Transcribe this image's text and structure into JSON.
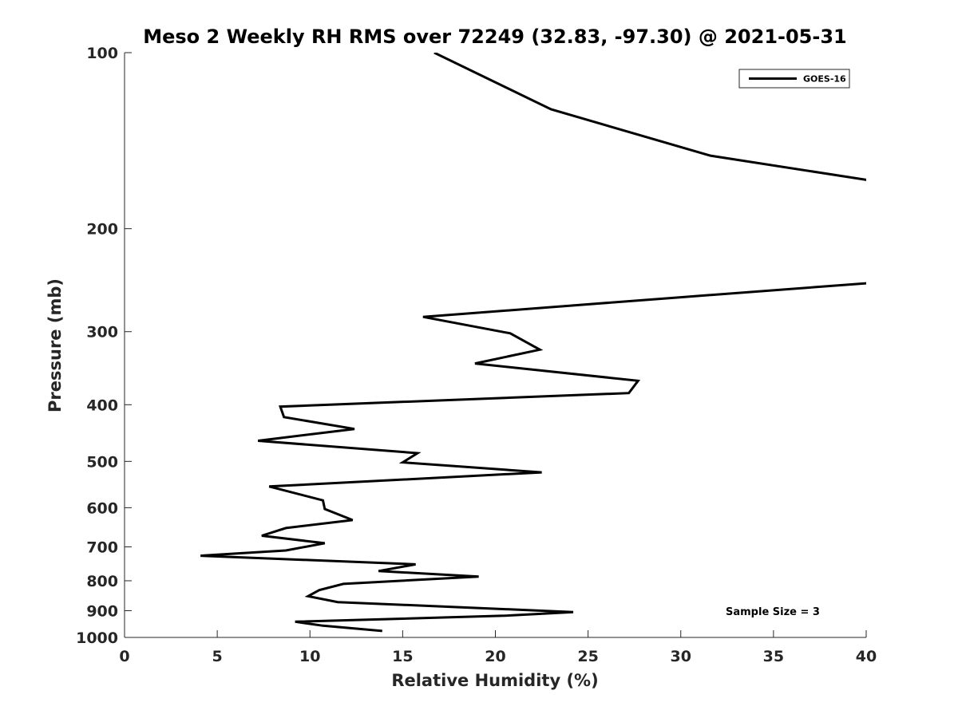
{
  "chart_data": {
    "type": "line",
    "title": "Meso 2 Weekly RH RMS over 72249 (32.83, -97.30) @ 2021-05-31",
    "xlabel": "Relative Humidity (%)",
    "ylabel": "Pressure (mb)",
    "xlim": [
      0,
      40
    ],
    "ylim": [
      100,
      1000
    ],
    "y_scale": "log",
    "y_reversed": true,
    "xticks": [
      0,
      5,
      10,
      15,
      20,
      25,
      30,
      35,
      40
    ],
    "yticks": [
      100,
      200,
      300,
      400,
      500,
      600,
      700,
      800,
      900,
      1000
    ],
    "grid": false,
    "legend_position": "top-right",
    "annotation": "Sample Size = 3",
    "series": [
      {
        "name": "GOES-16",
        "color": "#000000",
        "x": [
          16.7,
          23.0,
          31.6,
          40.0,
          44.0,
          43.5,
          40.0,
          30.0,
          16.1,
          20.8,
          22.4,
          18.9,
          27.7,
          27.2,
          8.4,
          8.6,
          12.4,
          7.2,
          15.8,
          15.0,
          22.5,
          7.8,
          10.7,
          10.8,
          12.3,
          8.7,
          7.4,
          10.8,
          8.7,
          4.1,
          15.7,
          13.7,
          19.1,
          11.8,
          10.5,
          9.9,
          11.5,
          24.2,
          20.5,
          9.2,
          10.7,
          13.9
        ],
        "y": [
          100,
          125,
          150,
          165,
          190,
          230,
          248,
          262,
          283,
          302,
          322,
          340,
          364,
          382,
          403,
          420,
          440,
          461,
          484,
          502,
          522,
          552,
          583,
          603,
          630,
          650,
          670,
          690,
          710,
          725,
          750,
          770,
          787,
          810,
          830,
          850,
          870,
          905,
          918,
          940,
          955,
          975
        ]
      }
    ]
  }
}
